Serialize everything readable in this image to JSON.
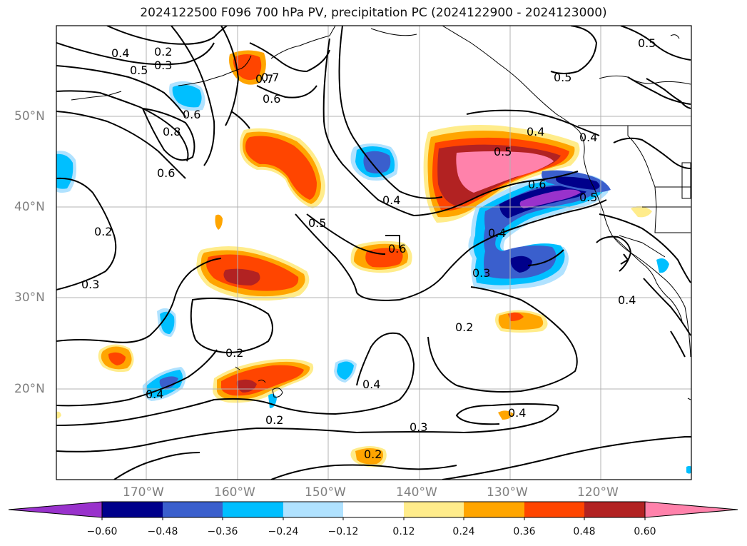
{
  "title": "2024122500 F096 700 hPa PV, precipitation PC (2024122900 - 2024123000)",
  "axes": {
    "lat_labels": [
      "50°N",
      "40°N",
      "30°N",
      "20°N"
    ],
    "lon_labels": [
      "170°W",
      "160°W",
      "150°W",
      "140°W",
      "130°W",
      "120°W"
    ]
  },
  "colorbar": {
    "tick_labels": [
      "−0.60",
      "−0.48",
      "−0.36",
      "−0.24",
      "−0.12",
      "0.12",
      "0.24",
      "0.36",
      "0.48",
      "0.60"
    ],
    "colors": [
      "#9932cc",
      "#00008b",
      "#3a5fcd",
      "#00bfff",
      "#b0e2ff",
      "#ffffff",
      "#ffec8b",
      "#ffa500",
      "#ff4500",
      "#b22222",
      "#ff82ab"
    ],
    "extend": "both"
  },
  "contour_labels": [
    "0.2",
    "0.3",
    "0.4",
    "0.5",
    "0.6",
    "0.7",
    "0.8",
    "0.5",
    "0.7",
    "0.6",
    "0.6",
    "0.5",
    "0.4",
    "0.4",
    "0.5",
    "0.6",
    "0.4",
    "0.5",
    "0.6",
    "0.5",
    "0.4",
    "0.3",
    "0.2",
    "0.2",
    "0.3",
    "0.2",
    "0.2",
    "0.4",
    "0.4",
    "0.3",
    "0.2",
    "0.4",
    "0.4"
  ]
}
